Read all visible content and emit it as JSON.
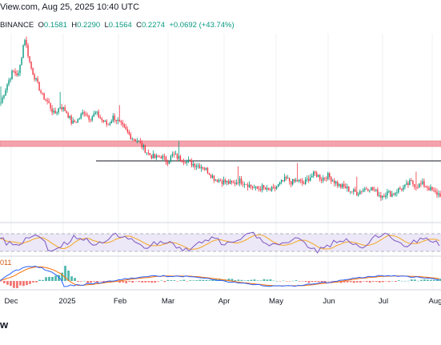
{
  "header": {
    "title_fragment": "View.com, Aug 25, 2025 10:40 UTC"
  },
  "ohlc": {
    "exchange": "BINANCE",
    "open_label": "O",
    "open": "0.1581",
    "high_label": "H",
    "high": "0.2290",
    "low_label": "L",
    "low": "0.1564",
    "close_label": "C",
    "close": "0.2274",
    "change": "+0.0692 (+43.74%)"
  },
  "oscillator_label_fragment": "011",
  "footer": {
    "logo_fragment": "w"
  },
  "colors": {
    "up": "#089981",
    "down": "#f23645",
    "resistance_zone": "#f4a3ad",
    "support_line": "#131722",
    "rsi_line": "#7e57c2",
    "rsi_ma": "#f5a623",
    "rsi_band": "#e9e4f6",
    "macd_line": "#2962ff",
    "signal_line": "#ff6d00",
    "grid": "#eef0f4"
  },
  "chart_data": {
    "type": "candlestick",
    "x_tick_labels": [
      "Dec",
      "2025",
      "Feb",
      "Mar",
      "Apr",
      "May",
      "Jun",
      "Jul",
      "Aug"
    ],
    "price_path": [
      0.62,
      0.72,
      0.8,
      0.78,
      1.0,
      0.83,
      0.74,
      0.66,
      0.62,
      0.55,
      0.6,
      0.57,
      0.5,
      0.52,
      0.57,
      0.53,
      0.56,
      0.52,
      0.49,
      0.54,
      0.5,
      0.46,
      0.42,
      0.4,
      0.36,
      0.32,
      0.3,
      0.31,
      0.28,
      0.32,
      0.3,
      0.29,
      0.27,
      0.26,
      0.25,
      0.22,
      0.18,
      0.17,
      0.16,
      0.15,
      0.17,
      0.16,
      0.14,
      0.12,
      0.13,
      0.11,
      0.12,
      0.15,
      0.18,
      0.16,
      0.17,
      0.15,
      0.19,
      0.21,
      0.18,
      0.2,
      0.17,
      0.14,
      0.13,
      0.11,
      0.1,
      0.12,
      0.13,
      0.11,
      0.08,
      0.1,
      0.09,
      0.12,
      0.13,
      0.16,
      0.14,
      0.15,
      0.13,
      0.1,
      0.09
    ],
    "resistance_zone_note": "",
    "support_line": "horizontal",
    "indicators": [
      "RSI",
      "MACD"
    ]
  }
}
